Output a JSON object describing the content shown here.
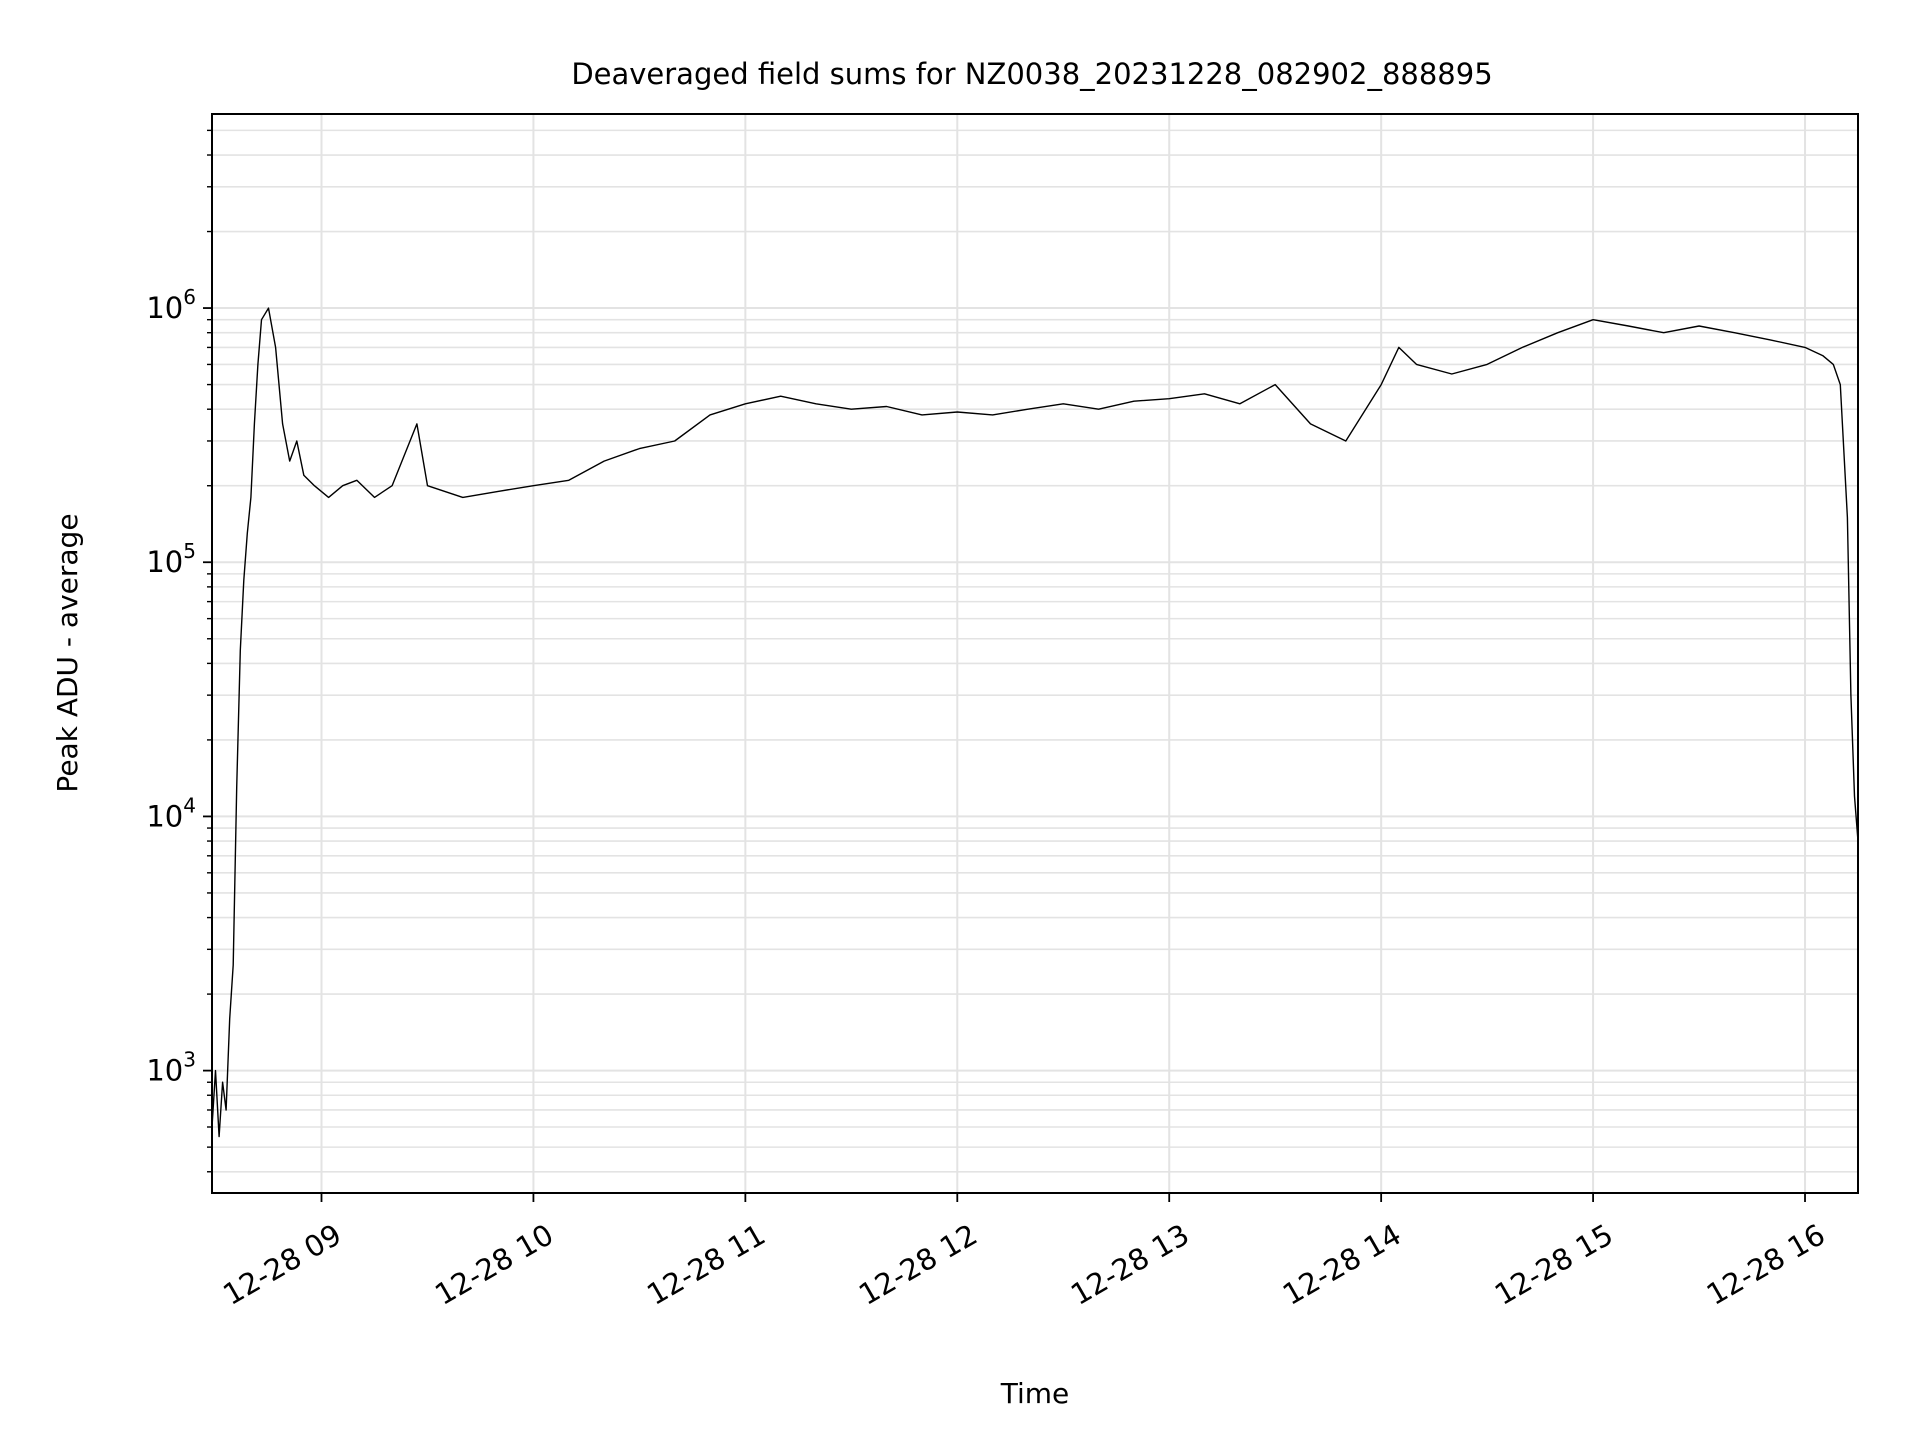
{
  "chart_data": {
    "type": "line",
    "title": "Deaveraged field sums for NZ0038_20231228_082902_888895",
    "xlabel": "Time",
    "ylabel": "Peak ADU - average",
    "yscale": "log",
    "xlim": [
      "2023-12-28 08:29",
      "2023-12-28 16:15"
    ],
    "ylim": [
      330,
      5800000
    ],
    "x_ticks": [
      {
        "label": "12-28 09",
        "value": "2023-12-28 09:00"
      },
      {
        "label": "12-28 10",
        "value": "2023-12-28 10:00"
      },
      {
        "label": "12-28 11",
        "value": "2023-12-28 11:00"
      },
      {
        "label": "12-28 12",
        "value": "2023-12-28 12:00"
      },
      {
        "label": "12-28 13",
        "value": "2023-12-28 13:00"
      },
      {
        "label": "12-28 14",
        "value": "2023-12-28 14:00"
      },
      {
        "label": "12-28 15",
        "value": "2023-12-28 15:00"
      },
      {
        "label": "12-28 16",
        "value": "2023-12-28 16:00"
      }
    ],
    "y_ticks": [
      {
        "base": "10",
        "exp": "3",
        "value": 1000
      },
      {
        "base": "10",
        "exp": "4",
        "value": 10000
      },
      {
        "base": "10",
        "exp": "5",
        "value": 100000
      },
      {
        "base": "10",
        "exp": "6",
        "value": 1000000
      }
    ],
    "grid": true,
    "line_color": "#000000",
    "grid_color": "#e3e3e3",
    "series": [
      {
        "x": [
          "2023-12-28 08:29",
          "2023-12-28 08:30",
          "2023-12-28 08:31",
          "2023-12-28 08:32",
          "2023-12-28 08:33",
          "2023-12-28 08:34",
          "2023-12-28 08:35",
          "2023-12-28 08:36",
          "2023-12-28 08:37",
          "2023-12-28 08:38",
          "2023-12-28 08:39",
          "2023-12-28 08:40",
          "2023-12-28 08:41",
          "2023-12-28 08:42",
          "2023-12-28 08:43",
          "2023-12-28 08:45",
          "2023-12-28 08:47",
          "2023-12-28 08:49",
          "2023-12-28 08:51",
          "2023-12-28 08:53",
          "2023-12-28 08:55",
          "2023-12-28 08:58",
          "2023-12-28 09:02",
          "2023-12-28 09:06",
          "2023-12-28 09:10",
          "2023-12-28 09:15",
          "2023-12-28 09:20",
          "2023-12-28 09:27",
          "2023-12-28 09:30",
          "2023-12-28 09:40",
          "2023-12-28 09:50",
          "2023-12-28 10:00",
          "2023-12-28 10:10",
          "2023-12-28 10:20",
          "2023-12-28 10:30",
          "2023-12-28 10:40",
          "2023-12-28 10:50",
          "2023-12-28 11:00",
          "2023-12-28 11:10",
          "2023-12-28 11:20",
          "2023-12-28 11:30",
          "2023-12-28 11:40",
          "2023-12-28 11:50",
          "2023-12-28 12:00",
          "2023-12-28 12:10",
          "2023-12-28 12:20",
          "2023-12-28 12:30",
          "2023-12-28 12:40",
          "2023-12-28 12:50",
          "2023-12-28 13:00",
          "2023-12-28 13:10",
          "2023-12-28 13:20",
          "2023-12-28 13:30",
          "2023-12-28 13:40",
          "2023-12-28 13:50",
          "2023-12-28 14:00",
          "2023-12-28 14:05",
          "2023-12-28 14:10",
          "2023-12-28 14:20",
          "2023-12-28 14:30",
          "2023-12-28 14:40",
          "2023-12-28 14:50",
          "2023-12-28 15:00",
          "2023-12-28 15:10",
          "2023-12-28 15:20",
          "2023-12-28 15:30",
          "2023-12-28 15:40",
          "2023-12-28 15:50",
          "2023-12-28 16:00",
          "2023-12-28 16:05",
          "2023-12-28 16:08",
          "2023-12-28 16:10",
          "2023-12-28 16:12",
          "2023-12-28 16:13",
          "2023-12-28 16:14",
          "2023-12-28 16:15"
        ],
        "y": [
          600,
          1000,
          550,
          900,
          700,
          1600,
          2600,
          13000,
          45000,
          85000,
          130000,
          180000,
          350000,
          600000,
          900000,
          1000000,
          700000,
          350000,
          250000,
          300000,
          220000,
          200000,
          180000,
          200000,
          210000,
          180000,
          200000,
          350000,
          200000,
          180000,
          190000,
          200000,
          210000,
          250000,
          280000,
          300000,
          380000,
          420000,
          450000,
          420000,
          400000,
          410000,
          380000,
          390000,
          380000,
          400000,
          420000,
          400000,
          430000,
          440000,
          460000,
          420000,
          500000,
          350000,
          300000,
          500000,
          700000,
          600000,
          550000,
          600000,
          700000,
          800000,
          900000,
          850000,
          800000,
          850000,
          800000,
          750000,
          700000,
          650000,
          600000,
          500000,
          150000,
          30000,
          12000,
          8000
        ]
      }
    ]
  }
}
